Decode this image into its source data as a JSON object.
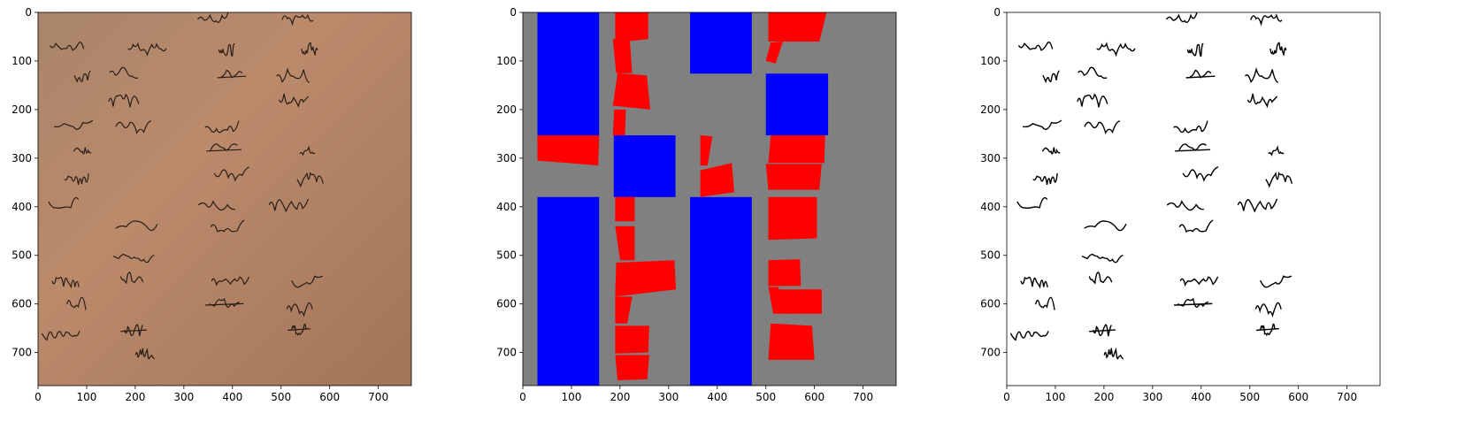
{
  "figure": {
    "panels": [
      {
        "name": "manuscript-photo",
        "content": "photo",
        "x_ticks": [
          "0",
          "100",
          "200",
          "300",
          "400",
          "500",
          "600",
          "700"
        ],
        "y_ticks": [
          "0",
          "100",
          "200",
          "300",
          "400",
          "500",
          "600",
          "700"
        ],
        "x_range": [
          0,
          768
        ],
        "y_range": [
          0,
          768
        ]
      },
      {
        "name": "segmentation-mask",
        "content": "mask",
        "x_ticks": [
          "0",
          "100",
          "200",
          "300",
          "400",
          "500",
          "600",
          "700"
        ],
        "y_ticks": [
          "0",
          "100",
          "200",
          "300",
          "400",
          "500",
          "600",
          "700"
        ],
        "x_range": [
          0,
          768
        ],
        "y_range": [
          0,
          768
        ]
      },
      {
        "name": "binarized-text",
        "content": "binary",
        "x_ticks": [
          "0",
          "100",
          "200",
          "300",
          "400",
          "500",
          "600",
          "700"
        ],
        "y_ticks": [
          "0",
          "100",
          "200",
          "300",
          "400",
          "500",
          "600",
          "700"
        ],
        "x_range": [
          0,
          768
        ],
        "y_range": [
          0,
          768
        ]
      }
    ],
    "colors": {
      "paper": "#b98a6c",
      "ink": "#1a1410",
      "mask_background": "#808080",
      "mask_blue": "#0000ff",
      "mask_red": "#ff0000",
      "binary_background": "#ffffff"
    }
  },
  "chart_data": {
    "type": "heatmap",
    "title": "",
    "xlabel": "",
    "ylabel": "",
    "xlim": [
      0,
      768
    ],
    "ylim": [
      768,
      0
    ],
    "mask_regions": {
      "blue_rects": [
        {
          "x0": 30,
          "y0": 0,
          "x1": 157,
          "y1": 253
        },
        {
          "x0": 344,
          "y0": 0,
          "x1": 471,
          "y1": 126
        },
        {
          "x0": 500,
          "y0": 126,
          "x1": 628,
          "y1": 253
        },
        {
          "x0": 187,
          "y0": 253,
          "x1": 314,
          "y1": 380
        },
        {
          "x0": 30,
          "y0": 380,
          "x1": 157,
          "y1": 768
        },
        {
          "x0": 344,
          "y0": 380,
          "x1": 471,
          "y1": 768
        }
      ],
      "red_quads": [
        [
          [
            190,
            0
          ],
          [
            258,
            0
          ],
          [
            258,
            55
          ],
          [
            190,
            62
          ]
        ],
        [
          [
            185,
            55
          ],
          [
            220,
            55
          ],
          [
            225,
            125
          ],
          [
            192,
            125
          ]
        ],
        [
          [
            195,
            125
          ],
          [
            255,
            130
          ],
          [
            262,
            200
          ],
          [
            185,
            192
          ]
        ],
        [
          [
            188,
            200
          ],
          [
            212,
            200
          ],
          [
            210,
            253
          ],
          [
            185,
            253
          ]
        ],
        [
          [
            30,
            253
          ],
          [
            157,
            253
          ],
          [
            155,
            315
          ],
          [
            30,
            305
          ]
        ],
        [
          [
            505,
            0
          ],
          [
            625,
            0
          ],
          [
            610,
            60
          ],
          [
            505,
            60
          ]
        ],
        [
          [
            510,
            62
          ],
          [
            535,
            60
          ],
          [
            520,
            105
          ],
          [
            500,
            100
          ]
        ],
        [
          [
            510,
            253
          ],
          [
            622,
            253
          ],
          [
            620,
            310
          ],
          [
            505,
            310
          ]
        ],
        [
          [
            500,
            312
          ],
          [
            615,
            312
          ],
          [
            610,
            365
          ],
          [
            505,
            365
          ]
        ],
        [
          [
            365,
            253
          ],
          [
            390,
            255
          ],
          [
            380,
            315
          ],
          [
            365,
            315
          ]
        ],
        [
          [
            365,
            325
          ],
          [
            430,
            310
          ],
          [
            435,
            370
          ],
          [
            365,
            380
          ]
        ],
        [
          [
            190,
            380
          ],
          [
            230,
            380
          ],
          [
            230,
            430
          ],
          [
            190,
            430
          ]
        ],
        [
          [
            190,
            440
          ],
          [
            230,
            440
          ],
          [
            230,
            510
          ],
          [
            200,
            510
          ]
        ],
        [
          [
            192,
            515
          ],
          [
            312,
            510
          ],
          [
            315,
            570
          ],
          [
            190,
            585
          ]
        ],
        [
          [
            190,
            585
          ],
          [
            225,
            585
          ],
          [
            215,
            640
          ],
          [
            190,
            640
          ]
        ],
        [
          [
            190,
            645
          ],
          [
            260,
            645
          ],
          [
            258,
            700
          ],
          [
            190,
            702
          ]
        ],
        [
          [
            190,
            705
          ],
          [
            260,
            705
          ],
          [
            256,
            755
          ],
          [
            195,
            757
          ]
        ],
        [
          [
            505,
            380
          ],
          [
            605,
            380
          ],
          [
            605,
            465
          ],
          [
            505,
            468
          ]
        ],
        [
          [
            505,
            510
          ],
          [
            570,
            508
          ],
          [
            572,
            563
          ],
          [
            505,
            563
          ]
        ],
        [
          [
            505,
            565
          ],
          [
            525,
            565
          ],
          [
            550,
            620
          ],
          [
            515,
            620
          ]
        ],
        [
          [
            525,
            570
          ],
          [
            615,
            570
          ],
          [
            615,
            620
          ],
          [
            545,
            620
          ]
        ],
        [
          [
            510,
            640
          ],
          [
            595,
            645
          ],
          [
            600,
            715
          ],
          [
            505,
            715
          ]
        ]
      ]
    }
  }
}
